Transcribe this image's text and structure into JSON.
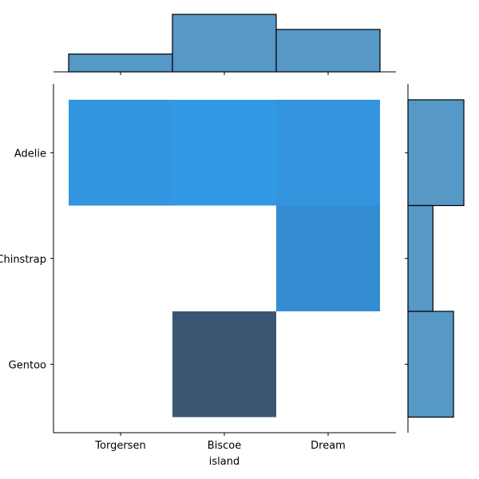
{
  "chart_data": {
    "type": "heatmap",
    "title": "",
    "xlabel": "island",
    "ylabel": "",
    "x_categories": [
      "Torgersen",
      "Biscoe",
      "Dream"
    ],
    "y_categories": [
      "Adelie",
      "Chinstrap",
      "Gentoo"
    ],
    "counts": [
      [
        52,
        44,
        56
      ],
      [
        0,
        0,
        68
      ],
      [
        0,
        124,
        0
      ]
    ],
    "marginal_x": {
      "type": "bar",
      "categories": [
        "Torgersen",
        "Biscoe",
        "Dream"
      ],
      "values": [
        52,
        168,
        124
      ]
    },
    "marginal_y": {
      "type": "bar",
      "categories": [
        "Adelie",
        "Chinstrap",
        "Gentoo"
      ],
      "values": [
        152,
        68,
        124
      ]
    },
    "grid": false,
    "legend": "none"
  },
  "colors": {
    "marginal_fill": "#5698c6",
    "marginal_edge": "#000000",
    "heat_low": "#31a1f3",
    "heat_high": "#3b5673",
    "axis": "#000000"
  }
}
